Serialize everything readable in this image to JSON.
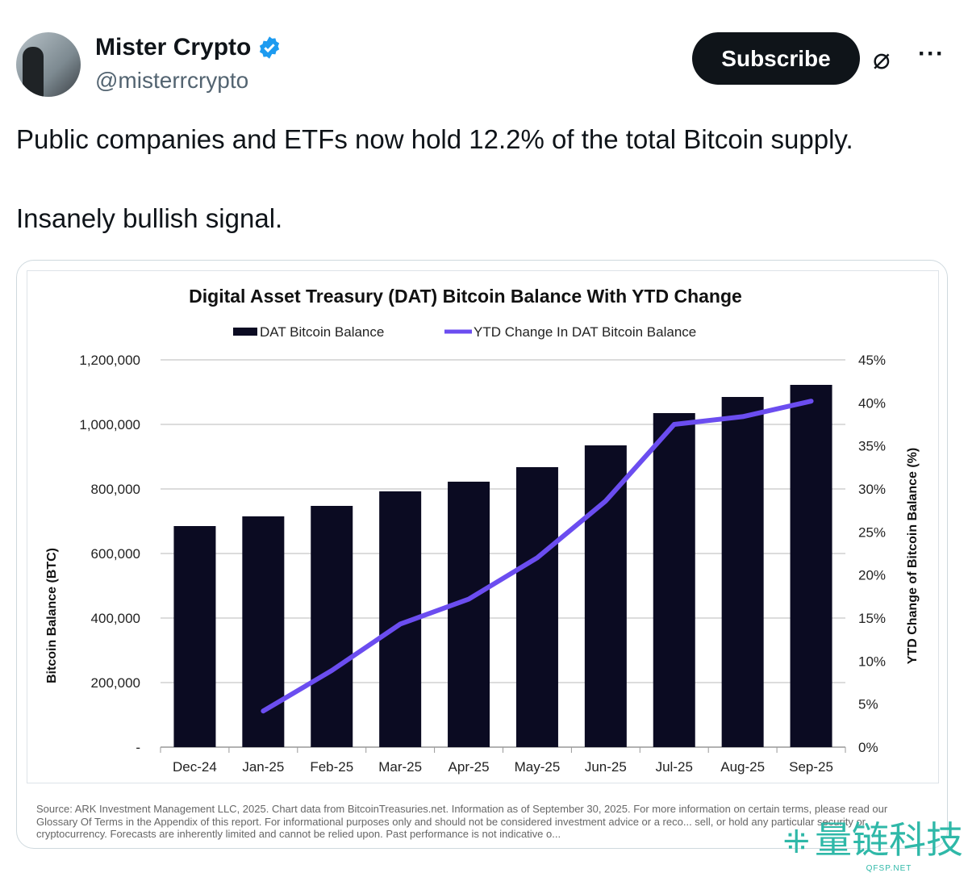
{
  "author": {
    "name": "Mister Crypto",
    "handle": "@misterrcrypto",
    "verified": true
  },
  "actions": {
    "subscribe_label": "Subscribe",
    "grok_icon": "slashed-circle-icon",
    "more_icon": "more-icon"
  },
  "tweet": {
    "line1": "Public companies and ETFs now hold 12.2% of the total Bitcoin supply.",
    "line2": "Insanely bullish signal."
  },
  "chart_data": {
    "type": "bar",
    "title": "Digital Asset Treasury (DAT) Bitcoin Balance With YTD Change",
    "categories": [
      "Dec-24",
      "Jan-25",
      "Feb-25",
      "Mar-25",
      "Apr-25",
      "May-25",
      "Jun-25",
      "Jul-25",
      "Aug-25",
      "Sep-25"
    ],
    "series": [
      {
        "name": "DAT Bitcoin Balance",
        "type": "bar",
        "axis": "left",
        "color": "#0b0b22",
        "values": [
          685000,
          715000,
          747500,
          792500,
          822500,
          867500,
          935000,
          1035000,
          1085000,
          1122500
        ]
      },
      {
        "name": "YTD Change In DAT Bitcoin Balance",
        "type": "line",
        "axis": "right",
        "color": "#6b4df0",
        "values": [
          null,
          4.2,
          8.9,
          14.3,
          17.2,
          22.0,
          28.6,
          37.5,
          38.4,
          40.2
        ]
      }
    ],
    "ylabel": "Bitcoin Balance (BTC)",
    "ylabel_right": "YTD Change of Bitcoin Balance (%)",
    "ylim": [
      0,
      1200000
    ],
    "ylim_right": [
      0,
      45
    ],
    "yticks": [
      "-",
      "200,000",
      "400,000",
      "600,000",
      "800,000",
      "1,000,000",
      "1,200,000"
    ],
    "yticks_right": [
      "0%",
      "5%",
      "10%",
      "15%",
      "20%",
      "25%",
      "30%",
      "35%",
      "40%",
      "45%"
    ],
    "grid": true,
    "legend": "top"
  },
  "source": "Source: ARK Investment Management LLC, 2025. Chart data from BitcoinTreasuries.net. Information as of September 30, 2025. For more information on certain terms, please read our Glossary Of Terms in the Appendix of this report. For informational purposes only and should not be considered investment advice or a reco... sell, or hold any particular security or cryptocurrency. Forecasts are inherently limited and cannot be relied upon. Past performance is not indicative o...",
  "watermark": {
    "text": "量链科技",
    "sub": "QFSP.NET"
  }
}
